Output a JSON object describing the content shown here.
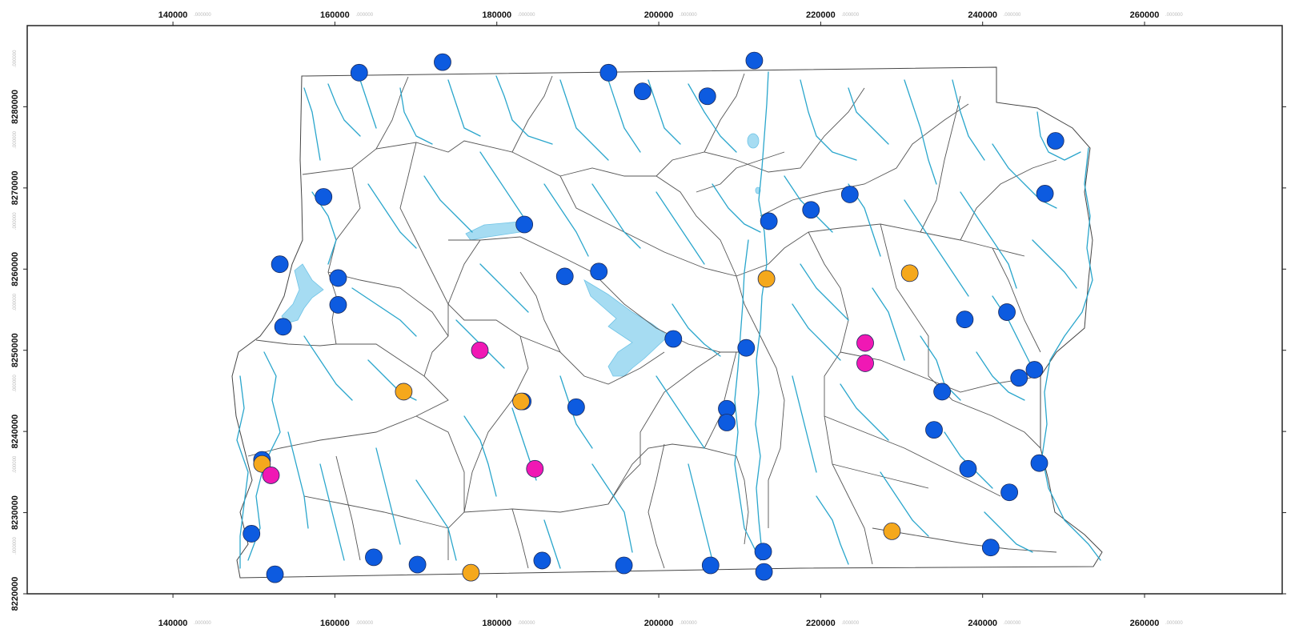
{
  "map": {
    "x_axis": {
      "range": [
        122000,
        277000
      ],
      "ticks": [
        {
          "label": "140000",
          "value": 140000
        },
        {
          "label": "160000",
          "value": 160000
        },
        {
          "label": "180000",
          "value": 180000
        },
        {
          "label": "200000",
          "value": 200000
        },
        {
          "label": "220000",
          "value": 220000
        },
        {
          "label": "240000",
          "value": 240000
        },
        {
          "label": "260000",
          "value": 260000
        }
      ],
      "suffix": ".000000"
    },
    "y_axis": {
      "range": [
        8220000,
        8290000
      ],
      "ticks": [
        {
          "label": "8220000",
          "value": 8220000
        },
        {
          "label": "8230000",
          "value": 8230000
        },
        {
          "label": "8240000",
          "value": 8240000
        },
        {
          "label": "8250000",
          "value": 8250000
        },
        {
          "label": "8260000",
          "value": 8260000
        },
        {
          "label": "8270000",
          "value": 8270000
        },
        {
          "label": "8280000",
          "value": 8280000
        }
      ],
      "suffix": ".000000"
    },
    "colors": {
      "river": "#2aa6cc",
      "lake": "#a6dcf2",
      "boundary": "#555555",
      "station_blue": "#0d5be0",
      "station_orange": "#f5a81c",
      "station_magenta": "#f018b4"
    },
    "stations": [
      {
        "type": "blue",
        "x": 163000,
        "y": 8284200
      },
      {
        "type": "blue",
        "x": 173300,
        "y": 8285500
      },
      {
        "type": "blue",
        "x": 193800,
        "y": 8284200
      },
      {
        "type": "blue",
        "x": 211800,
        "y": 8285700
      },
      {
        "type": "blue",
        "x": 198000,
        "y": 8281900
      },
      {
        "type": "blue",
        "x": 206000,
        "y": 8281300
      },
      {
        "type": "blue",
        "x": 249000,
        "y": 8275800
      },
      {
        "type": "blue",
        "x": 158600,
        "y": 8268900
      },
      {
        "type": "blue",
        "x": 247700,
        "y": 8269300
      },
      {
        "type": "blue",
        "x": 223600,
        "y": 8269200
      },
      {
        "type": "blue",
        "x": 218800,
        "y": 8267300
      },
      {
        "type": "blue",
        "x": 213600,
        "y": 8265900
      },
      {
        "type": "blue",
        "x": 183400,
        "y": 8265500
      },
      {
        "type": "blue",
        "x": 153200,
        "y": 8260600
      },
      {
        "type": "blue",
        "x": 160400,
        "y": 8258900
      },
      {
        "type": "blue",
        "x": 192600,
        "y": 8259700
      },
      {
        "type": "blue",
        "x": 188400,
        "y": 8259100
      },
      {
        "type": "blue",
        "x": 160400,
        "y": 8255600
      },
      {
        "type": "blue",
        "x": 153600,
        "y": 8252900
      },
      {
        "type": "blue",
        "x": 237800,
        "y": 8253800
      },
      {
        "type": "blue",
        "x": 243000,
        "y": 8254700
      },
      {
        "type": "blue",
        "x": 201800,
        "y": 8251400
      },
      {
        "type": "blue",
        "x": 210800,
        "y": 8250300
      },
      {
        "type": "blue",
        "x": 246400,
        "y": 8247600
      },
      {
        "type": "blue",
        "x": 244500,
        "y": 8246600
      },
      {
        "type": "blue",
        "x": 235000,
        "y": 8244900
      },
      {
        "type": "blue",
        "x": 183200,
        "y": 8243700
      },
      {
        "type": "blue",
        "x": 189800,
        "y": 8243000
      },
      {
        "type": "blue",
        "x": 208400,
        "y": 8242800
      },
      {
        "type": "blue",
        "x": 208400,
        "y": 8241100
      },
      {
        "type": "blue",
        "x": 234000,
        "y": 8240200
      },
      {
        "type": "blue",
        "x": 151000,
        "y": 8236500
      },
      {
        "type": "blue",
        "x": 247000,
        "y": 8236100
      },
      {
        "type": "blue",
        "x": 238200,
        "y": 8235400
      },
      {
        "type": "blue",
        "x": 243300,
        "y": 8232500
      },
      {
        "type": "blue",
        "x": 149700,
        "y": 8227400
      },
      {
        "type": "blue",
        "x": 241000,
        "y": 8225700
      },
      {
        "type": "blue",
        "x": 212900,
        "y": 8225200
      },
      {
        "type": "blue",
        "x": 164800,
        "y": 8224500
      },
      {
        "type": "blue",
        "x": 185600,
        "y": 8224100
      },
      {
        "type": "blue",
        "x": 170200,
        "y": 8223600
      },
      {
        "type": "blue",
        "x": 195700,
        "y": 8223500
      },
      {
        "type": "blue",
        "x": 206400,
        "y": 8223500
      },
      {
        "type": "blue",
        "x": 152600,
        "y": 8222400
      },
      {
        "type": "blue",
        "x": 213000,
        "y": 8222700
      },
      {
        "type": "orange",
        "x": 213300,
        "y": 8258800
      },
      {
        "type": "orange",
        "x": 231000,
        "y": 8259500
      },
      {
        "type": "orange",
        "x": 168500,
        "y": 8244900
      },
      {
        "type": "orange",
        "x": 183000,
        "y": 8243700
      },
      {
        "type": "orange",
        "x": 151000,
        "y": 8236000
      },
      {
        "type": "orange",
        "x": 228800,
        "y": 8227700
      },
      {
        "type": "orange",
        "x": 176800,
        "y": 8222600
      },
      {
        "type": "magenta",
        "x": 177900,
        "y": 8250000
      },
      {
        "type": "magenta",
        "x": 225500,
        "y": 8250900
      },
      {
        "type": "magenta",
        "x": 225500,
        "y": 8248400
      },
      {
        "type": "magenta",
        "x": 184700,
        "y": 8235400
      },
      {
        "type": "magenta",
        "x": 152100,
        "y": 8234600
      }
    ]
  }
}
